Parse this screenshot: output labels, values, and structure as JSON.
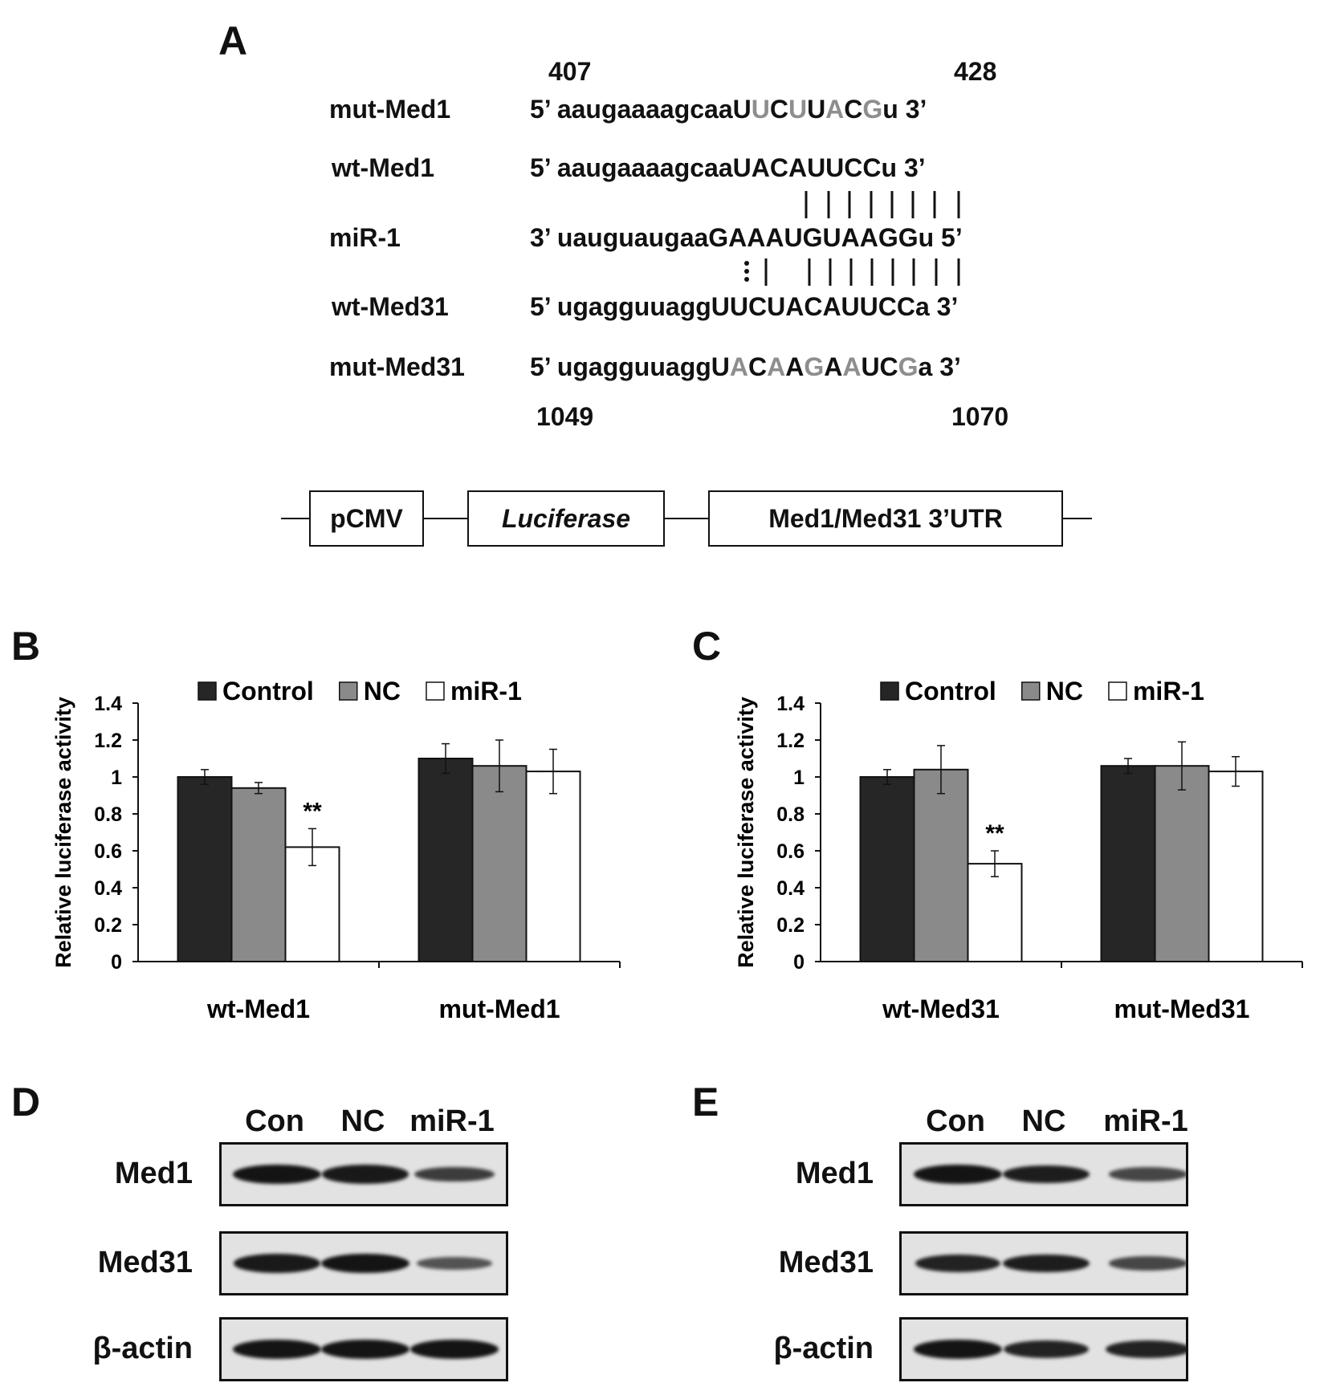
{
  "panel_a": {
    "letter": "A",
    "top_positions": {
      "start": "407",
      "end": "428"
    },
    "bottom_positions": {
      "start": "1049",
      "end": "1070"
    },
    "rows": [
      {
        "label": "mut-Med1",
        "segments": [
          {
            "t": "5’ aaugaaaagcaaU",
            "m": false
          },
          {
            "t": "U",
            "m": true
          },
          {
            "t": "C",
            "m": false
          },
          {
            "t": "U",
            "m": true
          },
          {
            "t": "U",
            "m": false
          },
          {
            "t": "A",
            "m": true
          },
          {
            "t": "C",
            "m": false
          },
          {
            "t": "G",
            "m": true
          },
          {
            "t": "u 3’",
            "m": false
          }
        ]
      },
      {
        "label": "wt-Med1",
        "segments": [
          {
            "t": "5’ aaugaaaagcaaUACAUUCCu 3’",
            "m": false
          }
        ]
      },
      {
        "label": "miR-1",
        "segments": [
          {
            "t": "3’ uauguaugaaGAAAUGUAAGGu 5’",
            "m": false
          }
        ]
      },
      {
        "label": "wt-Med31",
        "segments": [
          {
            "t": "5’ ugagguuaggUUCUACAUUCCa 3’",
            "m": false
          }
        ]
      },
      {
        "label": "mut-Med31",
        "segments": [
          {
            "t": "5’ ugagguuaggU",
            "m": false
          },
          {
            "t": "A",
            "m": true
          },
          {
            "t": "C",
            "m": false
          },
          {
            "t": "A",
            "m": true
          },
          {
            "t": "A",
            "m": false
          },
          {
            "t": "G",
            "m": true
          },
          {
            "t": "A",
            "m": false
          },
          {
            "t": "A",
            "m": true
          },
          {
            "t": "UC",
            "m": false
          },
          {
            "t": "G",
            "m": true
          },
          {
            "t": "a 3’",
            "m": false
          }
        ]
      }
    ],
    "construct": [
      "pCMV",
      "Luciferase",
      "Med1/Med31 3’UTR"
    ]
  },
  "chart_data": [
    {
      "panel": "B",
      "type": "bar",
      "categories": [
        "wt-Med1",
        "mut-Med1"
      ],
      "series": [
        {
          "name": "Control",
          "color": "#262626",
          "values": [
            1.0,
            1.1
          ],
          "errors": [
            0.04,
            0.08
          ]
        },
        {
          "name": "NC",
          "color": "#8a8a8a",
          "values": [
            0.94,
            1.06
          ],
          "errors": [
            0.03,
            0.14
          ]
        },
        {
          "name": "miR-1",
          "color": "#ffffff",
          "values": [
            0.62,
            1.03
          ],
          "errors": [
            0.1,
            0.12
          ]
        }
      ],
      "annotations": [
        {
          "category": "wt-Med1",
          "series": "miR-1",
          "text": "**"
        }
      ],
      "ylabel": "Relative luciferase activity",
      "ylim": [
        0,
        1.4
      ],
      "yticks": [
        "0",
        "0.2",
        "0.4",
        "0.6",
        "0.8",
        "1",
        "1.2",
        "1.4"
      ],
      "legend": "top"
    },
    {
      "panel": "C",
      "type": "bar",
      "categories": [
        "wt-Med31",
        "mut-Med31"
      ],
      "series": [
        {
          "name": "Control",
          "color": "#262626",
          "values": [
            1.0,
            1.06
          ],
          "errors": [
            0.04,
            0.04
          ]
        },
        {
          "name": "NC",
          "color": "#8a8a8a",
          "values": [
            1.04,
            1.06
          ],
          "errors": [
            0.13,
            0.13
          ]
        },
        {
          "name": "miR-1",
          "color": "#ffffff",
          "values": [
            0.53,
            1.03
          ],
          "errors": [
            0.07,
            0.08
          ]
        }
      ],
      "annotations": [
        {
          "category": "wt-Med31",
          "series": "miR-1",
          "text": "**"
        }
      ],
      "ylabel": "Relative luciferase activity",
      "ylim": [
        0,
        1.4
      ],
      "yticks": [
        "0",
        "0.2",
        "0.4",
        "0.6",
        "0.8",
        "1",
        "1.2",
        "1.4"
      ],
      "legend": "top"
    }
  ],
  "blots": [
    {
      "panel": "D",
      "lanes": [
        "Con",
        "NC",
        "miR-1"
      ],
      "rows": [
        {
          "label": "Med1",
          "intensity": [
            1.0,
            0.95,
            0.55
          ]
        },
        {
          "label": "Med31",
          "intensity": [
            0.95,
            1.0,
            0.3
          ]
        },
        {
          "label": "β-actin",
          "intensity": [
            1.0,
            1.0,
            1.0
          ]
        }
      ]
    },
    {
      "panel": "E",
      "lanes": [
        "Con",
        "NC",
        "miR-1"
      ],
      "rows": [
        {
          "label": "Med1",
          "intensity": [
            1.0,
            0.9,
            0.45
          ]
        },
        {
          "label": "Med31",
          "intensity": [
            0.85,
            0.9,
            0.45
          ]
        },
        {
          "label": "β-actin",
          "intensity": [
            1.0,
            0.85,
            0.85
          ]
        }
      ]
    }
  ]
}
